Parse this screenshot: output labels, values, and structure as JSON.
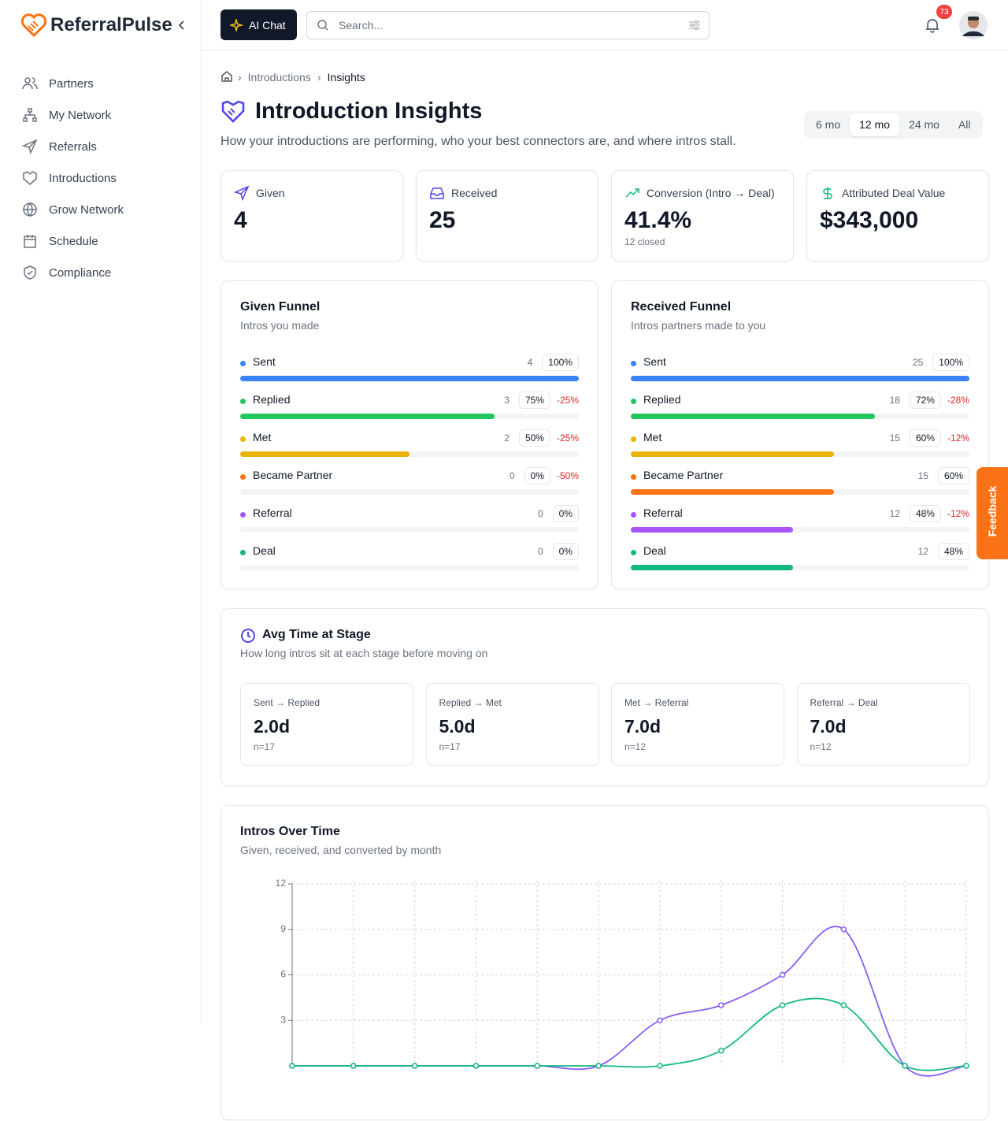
{
  "brand": "ReferralPulse",
  "header": {
    "ai_chat": "AI Chat",
    "search_placeholder": "Search...",
    "notifications": 73
  },
  "nav": [
    "Partners",
    "My Network",
    "Referrals",
    "Introductions",
    "Grow Network",
    "Schedule",
    "Compliance"
  ],
  "breadcrumb": [
    "Introductions",
    "Insights"
  ],
  "page": {
    "title": "Introduction Insights",
    "subtitle": "How your introductions are performing, who your best connectors are, and where intros stall.",
    "ranges": [
      {
        "label": "6 mo"
      },
      {
        "label": "12 mo",
        "active": true
      },
      {
        "label": "24 mo"
      },
      {
        "label": "All"
      }
    ]
  },
  "kpis": [
    {
      "label": "Given",
      "value": "4"
    },
    {
      "label": "Received",
      "value": "25"
    },
    {
      "label": "Conversion (Intro → Deal)",
      "value": "41.4%",
      "note": "12 closed"
    },
    {
      "label": "Attributed Deal Value",
      "value": "$343,000"
    }
  ],
  "funnels": [
    {
      "title": "Given Funnel",
      "subtitle": "Intros you made",
      "stages": [
        {
          "name": "Sent",
          "color": "#3b82f6",
          "count": 4,
          "pct": 100,
          "pct_label": "100%"
        },
        {
          "name": "Replied",
          "color": "#22c55e",
          "count": 3,
          "pct": 75,
          "pct_label": "75%",
          "delta": "-25%"
        },
        {
          "name": "Met",
          "color": "#eab308",
          "count": 2,
          "pct": 50,
          "pct_label": "50%",
          "delta": "-25%"
        },
        {
          "name": "Became Partner",
          "color": "#f97316",
          "count": 0,
          "pct": 0,
          "pct_label": "0%",
          "delta": "-50%"
        },
        {
          "name": "Referral",
          "color": "#a855f7",
          "count": 0,
          "pct": 0,
          "pct_label": "0%"
        },
        {
          "name": "Deal",
          "color": "#10b981",
          "count": 0,
          "pct": 0,
          "pct_label": "0%"
        }
      ]
    },
    {
      "title": "Received Funnel",
      "subtitle": "Intros partners made to you",
      "stages": [
        {
          "name": "Sent",
          "color": "#3b82f6",
          "count": 25,
          "pct": 100,
          "pct_label": "100%"
        },
        {
          "name": "Replied",
          "color": "#22c55e",
          "count": 18,
          "pct": 72,
          "pct_label": "72%",
          "delta": "-28%"
        },
        {
          "name": "Met",
          "color": "#eab308",
          "count": 15,
          "pct": 60,
          "pct_label": "60%",
          "delta": "-12%"
        },
        {
          "name": "Became Partner",
          "color": "#f97316",
          "count": 15,
          "pct": 60,
          "pct_label": "60%"
        },
        {
          "name": "Referral",
          "color": "#a855f7",
          "count": 12,
          "pct": 48,
          "pct_label": "48%",
          "delta": "-12%"
        },
        {
          "name": "Deal",
          "color": "#10b981",
          "count": 12,
          "pct": 48,
          "pct_label": "48%"
        }
      ]
    }
  ],
  "avg_time": {
    "title": "Avg Time at Stage",
    "subtitle": "How long intros sit at each stage before moving on",
    "stages": [
      {
        "label": "Sent → Replied",
        "value": "2.0d",
        "n": "n=17"
      },
      {
        "label": "Replied → Met",
        "value": "5.0d",
        "n": "n=17"
      },
      {
        "label": "Met → Referral",
        "value": "7.0d",
        "n": "n=12"
      },
      {
        "label": "Referral → Deal",
        "value": "7.0d",
        "n": "n=12"
      }
    ]
  },
  "chart_data": {
    "type": "line",
    "title": "Intros Over Time",
    "subtitle": "Given, received, and converted by month",
    "categories": [
      null,
      null,
      null,
      null,
      null,
      null,
      null,
      null,
      null,
      null,
      null,
      null
    ],
    "series": [
      {
        "color": "#8b5cf6",
        "values": [
          0,
          0,
          0,
          0,
          0,
          0,
          3,
          4,
          6,
          9,
          0,
          0
        ]
      },
      {
        "color": "#10b981",
        "values": [
          0,
          0,
          0,
          0,
          0,
          0,
          0,
          1,
          4,
          4,
          0,
          0
        ]
      }
    ],
    "ylim": [
      0,
      12
    ],
    "yticks": [
      3,
      6,
      9,
      12
    ],
    "grid": true
  },
  "feedback": "Feedback"
}
